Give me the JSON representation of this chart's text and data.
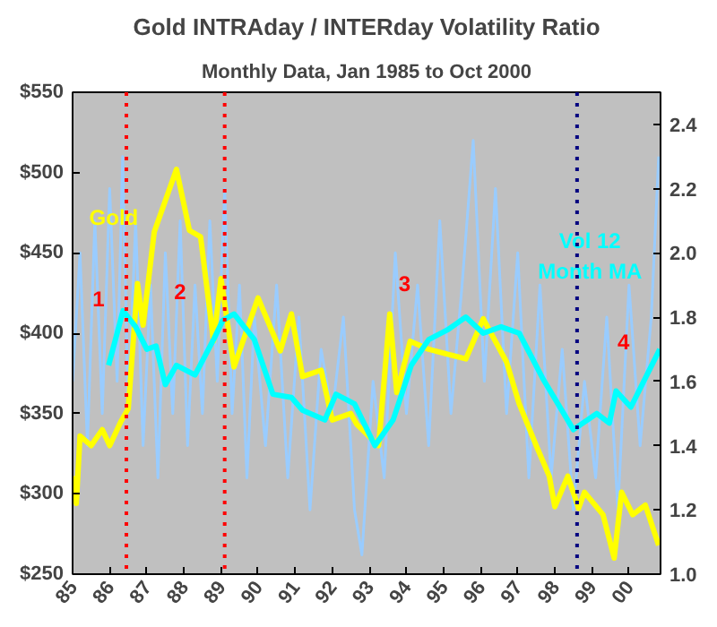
{
  "chart_data": {
    "type": "line",
    "title": "Gold INTRAday / INTERday Volatility Ratio",
    "subtitle": "Monthly Data, Jan 1985 to Oct 2000",
    "xlim": [
      1985,
      2000.85
    ],
    "xticks": [
      {
        "value": 1985,
        "label": "85"
      },
      {
        "value": 1986,
        "label": "86"
      },
      {
        "value": 1987,
        "label": "87"
      },
      {
        "value": 1988,
        "label": "88"
      },
      {
        "value": 1989,
        "label": "89"
      },
      {
        "value": 1990,
        "label": "90"
      },
      {
        "value": 1991,
        "label": "91"
      },
      {
        "value": 1992,
        "label": "92"
      },
      {
        "value": 1993,
        "label": "93"
      },
      {
        "value": 1994,
        "label": "94"
      },
      {
        "value": 1995,
        "label": "95"
      },
      {
        "value": 1996,
        "label": "96"
      },
      {
        "value": 1997,
        "label": "97"
      },
      {
        "value": 1998,
        "label": "98"
      },
      {
        "value": 1999,
        "label": "99"
      },
      {
        "value": 2000,
        "label": "00"
      }
    ],
    "ylim": [
      250,
      550
    ],
    "yticks": [
      {
        "value": 250,
        "label": "$250"
      },
      {
        "value": 300,
        "label": "$300"
      },
      {
        "value": 350,
        "label": "$350"
      },
      {
        "value": 400,
        "label": "$400"
      },
      {
        "value": 450,
        "label": "$450"
      },
      {
        "value": 500,
        "label": "$500"
      },
      {
        "value": 550,
        "label": "$550"
      }
    ],
    "y2lim": [
      1.0,
      2.5
    ],
    "y2ticks": [
      {
        "value": 1.0,
        "label": "1.0"
      },
      {
        "value": 1.2,
        "label": "1.2"
      },
      {
        "value": 1.4,
        "label": "1.4"
      },
      {
        "value": 1.6,
        "label": "1.6"
      },
      {
        "value": 1.8,
        "label": "1.8"
      },
      {
        "value": 2.0,
        "label": "2.0"
      },
      {
        "value": 2.2,
        "label": "2.2"
      },
      {
        "value": 2.4,
        "label": "2.4"
      }
    ],
    "grid": false,
    "marker": "none",
    "line_style": "solid",
    "series": [
      {
        "color": "#99ccff",
        "axis": "y2",
        "x": [
          1985.0,
          1985.2,
          1985.4,
          1985.6,
          1985.8,
          1986.0,
          1986.2,
          1986.35,
          1986.5,
          1986.7,
          1986.9,
          1987.1,
          1987.3,
          1987.5,
          1987.7,
          1987.9,
          1988.1,
          1988.3,
          1988.5,
          1988.7,
          1988.9,
          1989.1,
          1989.3,
          1989.5,
          1989.7,
          1989.9,
          1990.2,
          1990.5,
          1990.8,
          1991.1,
          1991.4,
          1991.7,
          1992.0,
          1992.3,
          1992.6,
          1992.8,
          1993.1,
          1993.4,
          1993.7,
          1994.0,
          1994.3,
          1994.6,
          1994.9,
          1995.2,
          1995.5,
          1995.8,
          1996.1,
          1996.4,
          1996.7,
          1997.0,
          1997.3,
          1997.6,
          1997.9,
          1998.2,
          1998.5,
          1998.8,
          1999.1,
          1999.4,
          1999.7,
          2000.0,
          2000.3,
          2000.6,
          2000.8
        ],
        "values": [
          1.6,
          2.0,
          1.4,
          2.1,
          1.5,
          2.2,
          1.6,
          2.3,
          1.5,
          2.1,
          1.4,
          1.9,
          1.3,
          2.0,
          1.5,
          2.1,
          1.4,
          1.9,
          1.5,
          2.1,
          1.6,
          2.2,
          1.5,
          1.9,
          1.3,
          1.8,
          1.4,
          1.9,
          1.3,
          1.8,
          1.2,
          1.7,
          1.5,
          1.8,
          1.2,
          1.06,
          1.6,
          1.3,
          2.0,
          1.5,
          1.9,
          1.4,
          2.1,
          1.5,
          1.9,
          2.35,
          1.6,
          2.2,
          1.5,
          2.0,
          1.3,
          1.9,
          1.3,
          1.7,
          1.2,
          1.6,
          1.3,
          1.8,
          1.2,
          1.9,
          1.4,
          1.8,
          2.3
        ]
      },
      {
        "color": "#ffff00",
        "x": [
          1985.0,
          1985.1,
          1985.2,
          1985.5,
          1985.8,
          1986.0,
          1986.3,
          1986.5,
          1986.75,
          1986.9,
          1987.2,
          1987.8,
          1988.15,
          1988.45,
          1988.8,
          1989.0,
          1989.35,
          1990.0,
          1990.6,
          1990.9,
          1991.2,
          1991.7,
          1992.0,
          1992.5,
          1992.67,
          1993.25,
          1993.55,
          1993.74,
          1994.1,
          1994.6,
          1995.1,
          1995.6,
          1996.07,
          1996.7,
          1997.04,
          1997.5,
          1997.85,
          1998.0,
          1998.35,
          1998.64,
          1998.8,
          1999.3,
          1999.6,
          1999.8,
          2000.1,
          2000.44,
          2000.8
        ],
        "values": [
          311,
          294,
          336,
          330,
          340,
          330,
          345,
          353,
          431,
          405,
          463,
          502,
          464,
          460,
          395,
          434,
          379,
          422,
          389,
          412,
          373,
          377,
          346,
          350,
          343,
          330,
          412,
          363,
          395,
          390,
          387,
          384,
          409,
          382,
          356,
          330,
          311,
          292,
          311,
          291,
          301,
          287,
          260,
          301,
          287,
          293,
          268
        ]
      },
      {
        "color": "#00ffff",
        "axis": "y2",
        "x": [
          1985.97,
          1986.36,
          1986.7,
          1987.0,
          1987.25,
          1987.5,
          1987.8,
          1988.3,
          1988.8,
          1989.05,
          1989.35,
          1989.9,
          1990.4,
          1990.9,
          1991.2,
          1991.8,
          1992.1,
          1992.6,
          1993.15,
          1993.64,
          1994.13,
          1994.6,
          1995.1,
          1995.6,
          1996.07,
          1996.55,
          1997.04,
          1997.67,
          1998.5,
          1999.13,
          1999.47,
          1999.65,
          2000.05,
          2000.44,
          2000.83
        ],
        "values": [
          1.65,
          1.82,
          1.77,
          1.7,
          1.71,
          1.59,
          1.65,
          1.62,
          1.73,
          1.79,
          1.81,
          1.73,
          1.56,
          1.55,
          1.51,
          1.48,
          1.56,
          1.53,
          1.4,
          1.48,
          1.65,
          1.73,
          1.76,
          1.8,
          1.75,
          1.77,
          1.75,
          1.61,
          1.45,
          1.5,
          1.47,
          1.57,
          1.52,
          1.61,
          1.7
        ]
      }
    ],
    "ref_lines": [
      {
        "axis": "x",
        "value": 1986.45,
        "color": "#ff0000",
        "line_style": "dotted"
      },
      {
        "axis": "x",
        "value": 1989.1,
        "color": "#ff0000",
        "line_style": "dotted"
      },
      {
        "axis": "x",
        "value": 1998.6,
        "color": "#000080",
        "line_style": "dotted"
      }
    ],
    "annotations": [
      "Gold",
      {
        "text": "1",
        "x": 1985.7,
        "y": 422
      },
      {
        "text": "2",
        "x": 1987.9,
        "y": 426
      },
      {
        "text": "3",
        "x": 1993.95,
        "y": 431
      },
      {
        "text": "4",
        "x": 1999.85,
        "y": 395
      },
      "Vol 12\nMonth MA"
    ]
  }
}
